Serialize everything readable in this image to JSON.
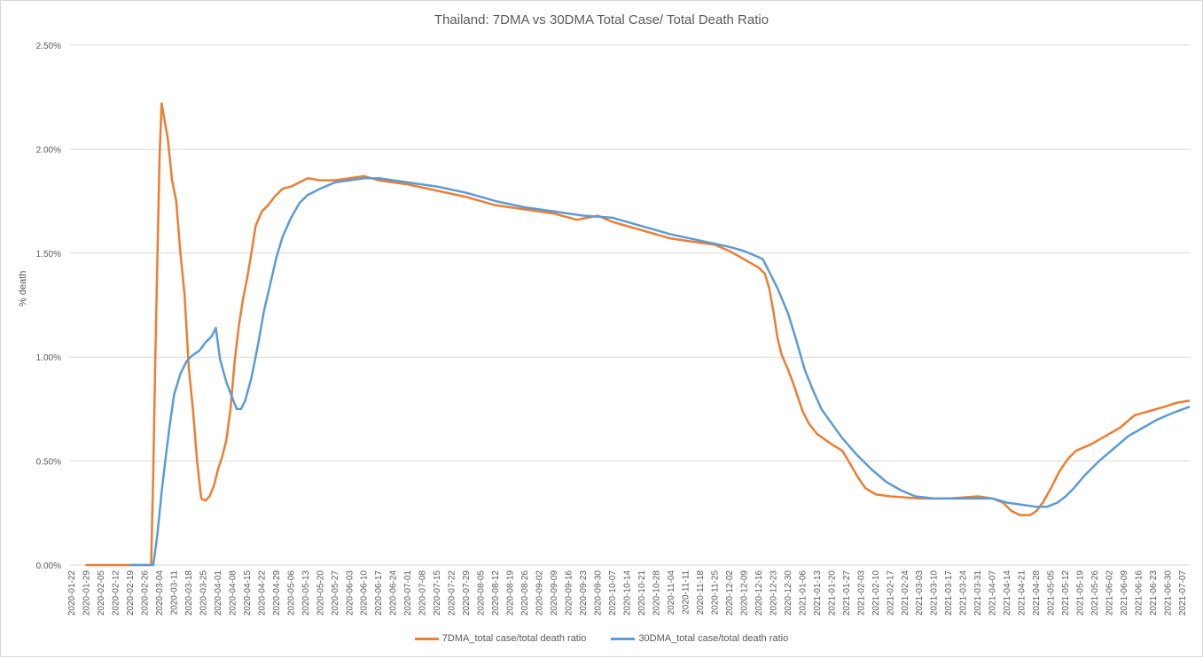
{
  "chart_data": {
    "type": "line",
    "title": "Thailand: 7DMA vs 30DMA Total Case/ Total Death Ratio",
    "xlabel": "",
    "ylabel": "% death",
    "ylim": [
      0,
      0.025
    ],
    "y_ticks": [
      "0.00%",
      "0.50%",
      "1.00%",
      "1.50%",
      "2.00%",
      "2.50%"
    ],
    "y_tick_values": [
      0,
      0.005,
      0.01,
      0.015,
      0.02,
      0.025
    ],
    "grid": true,
    "legend_position": "bottom",
    "x_ticks": [
      "2020-01-22",
      "2020-01-29",
      "2020-02-05",
      "2020-02-12",
      "2020-02-19",
      "2020-02-26",
      "2020-03-04",
      "2020-03-11",
      "2020-03-18",
      "2020-03-25",
      "2020-04-01",
      "2020-04-08",
      "2020-04-15",
      "2020-04-22",
      "2020-04-29",
      "2020-05-06",
      "2020-05-13",
      "2020-05-20",
      "2020-05-27",
      "2020-06-03",
      "2020-06-10",
      "2020-06-17",
      "2020-06-24",
      "2020-07-01",
      "2020-07-08",
      "2020-07-15",
      "2020-07-22",
      "2020-07-29",
      "2020-08-05",
      "2020-08-12",
      "2020-08-19",
      "2020-08-26",
      "2020-09-02",
      "2020-09-09",
      "2020-09-16",
      "2020-09-23",
      "2020-09-30",
      "2020-10-07",
      "2020-10-14",
      "2020-10-21",
      "2020-10-28",
      "2020-11-04",
      "2020-11-11",
      "2020-11-18",
      "2020-11-25",
      "2020-12-02",
      "2020-12-09",
      "2020-12-16",
      "2020-12-23",
      "2020-12-30",
      "2021-01-06",
      "2021-01-13",
      "2021-01-20",
      "2021-01-27",
      "2021-02-03",
      "2021-02-10",
      "2021-02-17",
      "2021-02-24",
      "2021-03-03",
      "2021-03-10",
      "2021-03-17",
      "2021-03-24",
      "2021-03-31",
      "2021-04-07",
      "2021-04-14",
      "2021-04-21",
      "2021-04-28",
      "2021-05-05",
      "2021-05-12",
      "2021-05-19",
      "2021-05-26",
      "2021-06-02",
      "2021-06-09",
      "2021-06-16",
      "2021-06-23",
      "2021-06-30",
      "2021-07-07"
    ],
    "series": [
      {
        "name": "7DMA_total case/total death ratio",
        "color": "#ED7D31",
        "points": [
          [
            "2020-01-29",
            0.0
          ],
          [
            "2020-02-19",
            0.0
          ],
          [
            "2020-02-29",
            0.0
          ],
          [
            "2020-03-01",
            0.0045
          ],
          [
            "2020-03-02",
            0.01
          ],
          [
            "2020-03-04",
            0.0195
          ],
          [
            "2020-03-05",
            0.0222
          ],
          [
            "2020-03-08",
            0.0205
          ],
          [
            "2020-03-10",
            0.0185
          ],
          [
            "2020-03-12",
            0.0175
          ],
          [
            "2020-03-14",
            0.015
          ],
          [
            "2020-03-16",
            0.013
          ],
          [
            "2020-03-18",
            0.0095
          ],
          [
            "2020-03-20",
            0.0075
          ],
          [
            "2020-03-22",
            0.005
          ],
          [
            "2020-03-24",
            0.0032
          ],
          [
            "2020-03-26",
            0.0031
          ],
          [
            "2020-03-28",
            0.0033
          ],
          [
            "2020-03-30",
            0.0038
          ],
          [
            "2020-04-01",
            0.0046
          ],
          [
            "2020-04-03",
            0.0052
          ],
          [
            "2020-04-05",
            0.006
          ],
          [
            "2020-04-07",
            0.0075
          ],
          [
            "2020-04-09",
            0.0098
          ],
          [
            "2020-04-11",
            0.0115
          ],
          [
            "2020-04-13",
            0.0128
          ],
          [
            "2020-04-15",
            0.0138
          ],
          [
            "2020-04-17",
            0.015
          ],
          [
            "2020-04-19",
            0.0163
          ],
          [
            "2020-04-22",
            0.017
          ],
          [
            "2020-04-25",
            0.0173
          ],
          [
            "2020-04-28",
            0.0177
          ],
          [
            "2020-05-02",
            0.0181
          ],
          [
            "2020-05-06",
            0.0182
          ],
          [
            "2020-05-10",
            0.0184
          ],
          [
            "2020-05-14",
            0.0186
          ],
          [
            "2020-05-20",
            0.0185
          ],
          [
            "2020-05-27",
            0.0185
          ],
          [
            "2020-06-03",
            0.0186
          ],
          [
            "2020-06-10",
            0.0187
          ],
          [
            "2020-06-17",
            0.0185
          ],
          [
            "2020-06-24",
            0.0184
          ],
          [
            "2020-07-01",
            0.0183
          ],
          [
            "2020-07-15",
            0.018
          ],
          [
            "2020-07-29",
            0.0177
          ],
          [
            "2020-08-12",
            0.0173
          ],
          [
            "2020-08-26",
            0.0171
          ],
          [
            "2020-09-09",
            0.0169
          ],
          [
            "2020-09-20",
            0.0166
          ],
          [
            "2020-09-30",
            0.0168
          ],
          [
            "2020-10-07",
            0.0165
          ],
          [
            "2020-10-21",
            0.0161
          ],
          [
            "2020-11-04",
            0.0157
          ],
          [
            "2020-11-11",
            0.0156
          ],
          [
            "2020-11-25",
            0.0154
          ],
          [
            "2020-12-02",
            0.0151
          ],
          [
            "2020-12-09",
            0.0147
          ],
          [
            "2020-12-16",
            0.0143
          ],
          [
            "2020-12-19",
            0.014
          ],
          [
            "2020-12-21",
            0.0133
          ],
          [
            "2020-12-23",
            0.0122
          ],
          [
            "2020-12-25",
            0.0109
          ],
          [
            "2020-12-27",
            0.0101
          ],
          [
            "2020-12-30",
            0.0094
          ],
          [
            "2021-01-02",
            0.0086
          ],
          [
            "2021-01-06",
            0.0074
          ],
          [
            "2021-01-09",
            0.0068
          ],
          [
            "2021-01-13",
            0.0063
          ],
          [
            "2021-01-20",
            0.0058
          ],
          [
            "2021-01-25",
            0.0055
          ],
          [
            "2021-01-28",
            0.005
          ],
          [
            "2021-02-01",
            0.0043
          ],
          [
            "2021-02-05",
            0.0037
          ],
          [
            "2021-02-10",
            0.0034
          ],
          [
            "2021-02-17",
            0.0033
          ],
          [
            "2021-03-03",
            0.0032
          ],
          [
            "2021-03-17",
            0.0032
          ],
          [
            "2021-03-31",
            0.0033
          ],
          [
            "2021-04-07",
            0.0032
          ],
          [
            "2021-04-12",
            0.003
          ],
          [
            "2021-04-16",
            0.0026
          ],
          [
            "2021-04-20",
            0.0024
          ],
          [
            "2021-04-25",
            0.0024
          ],
          [
            "2021-04-28",
            0.0026
          ],
          [
            "2021-05-01",
            0.003
          ],
          [
            "2021-05-05",
            0.0037
          ],
          [
            "2021-05-09",
            0.0045
          ],
          [
            "2021-05-13",
            0.0051
          ],
          [
            "2021-05-17",
            0.0055
          ],
          [
            "2021-05-24",
            0.0058
          ],
          [
            "2021-05-31",
            0.0062
          ],
          [
            "2021-06-07",
            0.0066
          ],
          [
            "2021-06-14",
            0.0072
          ],
          [
            "2021-06-21",
            0.0074
          ],
          [
            "2021-06-28",
            0.0076
          ],
          [
            "2021-07-04",
            0.0078
          ],
          [
            "2021-07-10",
            0.0079
          ]
        ]
      },
      {
        "name": "30DMA_total case/total death ratio",
        "color": "#5B9BD5",
        "points": [
          [
            "2020-02-19",
            0.0
          ],
          [
            "2020-03-01",
            0.0
          ],
          [
            "2020-03-03",
            0.0015
          ],
          [
            "2020-03-05",
            0.0035
          ],
          [
            "2020-03-07",
            0.0052
          ],
          [
            "2020-03-09",
            0.0068
          ],
          [
            "2020-03-11",
            0.0082
          ],
          [
            "2020-03-14",
            0.0092
          ],
          [
            "2020-03-17",
            0.0098
          ],
          [
            "2020-03-20",
            0.0101
          ],
          [
            "2020-03-23",
            0.0103
          ],
          [
            "2020-03-26",
            0.0107
          ],
          [
            "2020-03-29",
            0.011
          ],
          [
            "2020-03-31",
            0.0114
          ],
          [
            "2020-04-02",
            0.0099
          ],
          [
            "2020-04-05",
            0.0088
          ],
          [
            "2020-04-08",
            0.008
          ],
          [
            "2020-04-10",
            0.0075
          ],
          [
            "2020-04-12",
            0.0075
          ],
          [
            "2020-04-14",
            0.0079
          ],
          [
            "2020-04-17",
            0.009
          ],
          [
            "2020-04-20",
            0.0105
          ],
          [
            "2020-04-23",
            0.0122
          ],
          [
            "2020-04-26",
            0.0135
          ],
          [
            "2020-04-29",
            0.0148
          ],
          [
            "2020-05-02",
            0.0158
          ],
          [
            "2020-05-06",
            0.0167
          ],
          [
            "2020-05-10",
            0.0174
          ],
          [
            "2020-05-14",
            0.0178
          ],
          [
            "2020-05-20",
            0.0181
          ],
          [
            "2020-05-27",
            0.0184
          ],
          [
            "2020-06-03",
            0.0185
          ],
          [
            "2020-06-10",
            0.0186
          ],
          [
            "2020-06-17",
            0.0186
          ],
          [
            "2020-06-24",
            0.0185
          ],
          [
            "2020-07-01",
            0.0184
          ],
          [
            "2020-07-15",
            0.0182
          ],
          [
            "2020-07-29",
            0.0179
          ],
          [
            "2020-08-12",
            0.0175
          ],
          [
            "2020-08-26",
            0.0172
          ],
          [
            "2020-09-09",
            0.017
          ],
          [
            "2020-09-23",
            0.0168
          ],
          [
            "2020-10-07",
            0.0167
          ],
          [
            "2020-10-21",
            0.0163
          ],
          [
            "2020-11-04",
            0.0159
          ],
          [
            "2020-11-18",
            0.0156
          ],
          [
            "2020-12-02",
            0.0153
          ],
          [
            "2020-12-09",
            0.0151
          ],
          [
            "2020-12-16",
            0.0148
          ],
          [
            "2020-12-18",
            0.0147
          ],
          [
            "2020-12-21",
            0.0141
          ],
          [
            "2020-12-25",
            0.0133
          ],
          [
            "2020-12-30",
            0.0121
          ],
          [
            "2021-01-03",
            0.0108
          ],
          [
            "2021-01-07",
            0.0094
          ],
          [
            "2021-01-11",
            0.0084
          ],
          [
            "2021-01-15",
            0.0075
          ],
          [
            "2021-01-20",
            0.0068
          ],
          [
            "2021-01-25",
            0.0061
          ],
          [
            "2021-02-01",
            0.0053
          ],
          [
            "2021-02-08",
            0.0046
          ],
          [
            "2021-02-15",
            0.004
          ],
          [
            "2021-02-22",
            0.0036
          ],
          [
            "2021-03-01",
            0.0033
          ],
          [
            "2021-03-10",
            0.0032
          ],
          [
            "2021-03-24",
            0.0032
          ],
          [
            "2021-04-07",
            0.0032
          ],
          [
            "2021-04-14",
            0.003
          ],
          [
            "2021-04-21",
            0.0029
          ],
          [
            "2021-04-28",
            0.0028
          ],
          [
            "2021-05-03",
            0.0028
          ],
          [
            "2021-05-08",
            0.003
          ],
          [
            "2021-05-12",
            0.0033
          ],
          [
            "2021-05-16",
            0.0037
          ],
          [
            "2021-05-21",
            0.0043
          ],
          [
            "2021-05-28",
            0.005
          ],
          [
            "2021-06-04",
            0.0056
          ],
          [
            "2021-06-11",
            0.0062
          ],
          [
            "2021-06-18",
            0.0066
          ],
          [
            "2021-06-25",
            0.007
          ],
          [
            "2021-07-02",
            0.0073
          ],
          [
            "2021-07-10",
            0.0076
          ]
        ]
      }
    ]
  },
  "legend": {
    "items": [
      {
        "label": "7DMA_total case/total death ratio",
        "color": "#ED7D31"
      },
      {
        "label": "30DMA_total case/total death ratio",
        "color": "#5B9BD5"
      }
    ]
  }
}
